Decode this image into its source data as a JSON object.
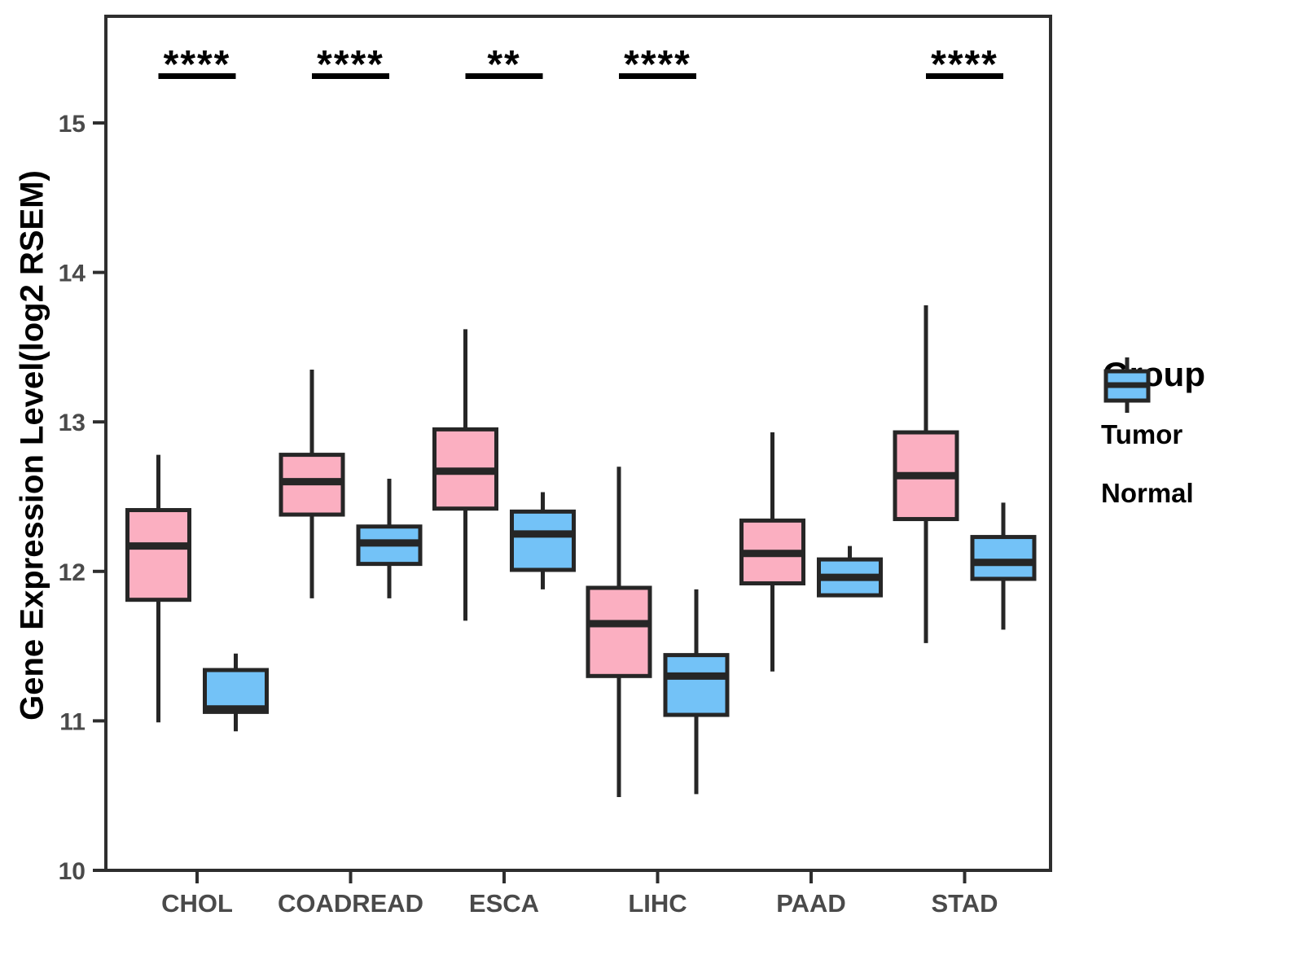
{
  "chart_data": {
    "type": "box",
    "title": "",
    "xlabel": "",
    "ylabel": "Gene Expression Level(log2 RSEM)",
    "ylim": [
      10,
      15.71
    ],
    "yticks": [
      10,
      11,
      12,
      13,
      14,
      15
    ],
    "grid": false,
    "categories": [
      "CHOL",
      "COADREAD",
      "ESCA",
      "LIHC",
      "PAAD",
      "STAD"
    ],
    "significance_labels": [
      "****",
      "****",
      "**",
      "****",
      "",
      "****"
    ],
    "legend": {
      "title": "Group",
      "position": "right",
      "entries": [
        {
          "label": "Tumor",
          "color": "#FBAFC1"
        },
        {
          "label": "Normal",
          "color": "#73C2F7"
        }
      ]
    },
    "series": [
      {
        "name": "Tumor",
        "color": "#FBAFC1",
        "boxes": [
          {
            "category": "CHOL",
            "whisker_low": 10.99,
            "q1": 11.81,
            "median": 12.17,
            "q3": 12.41,
            "whisker_high": 12.78
          },
          {
            "category": "COADREAD",
            "whisker_low": 11.82,
            "q1": 12.38,
            "median": 12.6,
            "q3": 12.78,
            "whisker_high": 13.35
          },
          {
            "category": "ESCA",
            "whisker_low": 11.67,
            "q1": 12.42,
            "median": 12.67,
            "q3": 12.95,
            "whisker_high": 13.62
          },
          {
            "category": "LIHC",
            "whisker_low": 10.49,
            "q1": 11.3,
            "median": 11.65,
            "q3": 11.89,
            "whisker_high": 12.7
          },
          {
            "category": "PAAD",
            "whisker_low": 11.33,
            "q1": 11.92,
            "median": 12.12,
            "q3": 12.34,
            "whisker_high": 12.93
          },
          {
            "category": "STAD",
            "whisker_low": 11.52,
            "q1": 12.35,
            "median": 12.64,
            "q3": 12.93,
            "whisker_high": 13.78
          }
        ]
      },
      {
        "name": "Normal",
        "color": "#73C2F7",
        "boxes": [
          {
            "category": "CHOL",
            "whisker_low": 10.93,
            "q1": 11.06,
            "median": 11.08,
            "q3": 11.34,
            "whisker_high": 11.45
          },
          {
            "category": "COADREAD",
            "whisker_low": 11.82,
            "q1": 12.05,
            "median": 12.19,
            "q3": 12.3,
            "whisker_high": 12.62
          },
          {
            "category": "ESCA",
            "whisker_low": 11.88,
            "q1": 12.01,
            "median": 12.25,
            "q3": 12.4,
            "whisker_high": 12.53
          },
          {
            "category": "LIHC",
            "whisker_low": 10.51,
            "q1": 11.04,
            "median": 11.3,
            "q3": 11.44,
            "whisker_high": 11.88
          },
          {
            "category": "PAAD",
            "whisker_low": 11.83,
            "q1": 11.84,
            "median": 11.96,
            "q3": 12.08,
            "whisker_high": 12.17
          },
          {
            "category": "STAD",
            "whisker_low": 11.61,
            "q1": 11.95,
            "median": 12.06,
            "q3": 12.23,
            "whisker_high": 12.46
          }
        ]
      }
    ],
    "colors": {
      "box_stroke": "#262626",
      "axis": "#2e2e2e",
      "tick_text": "#4a4a4a",
      "annotation": "#000000",
      "background": "#ffffff"
    }
  }
}
